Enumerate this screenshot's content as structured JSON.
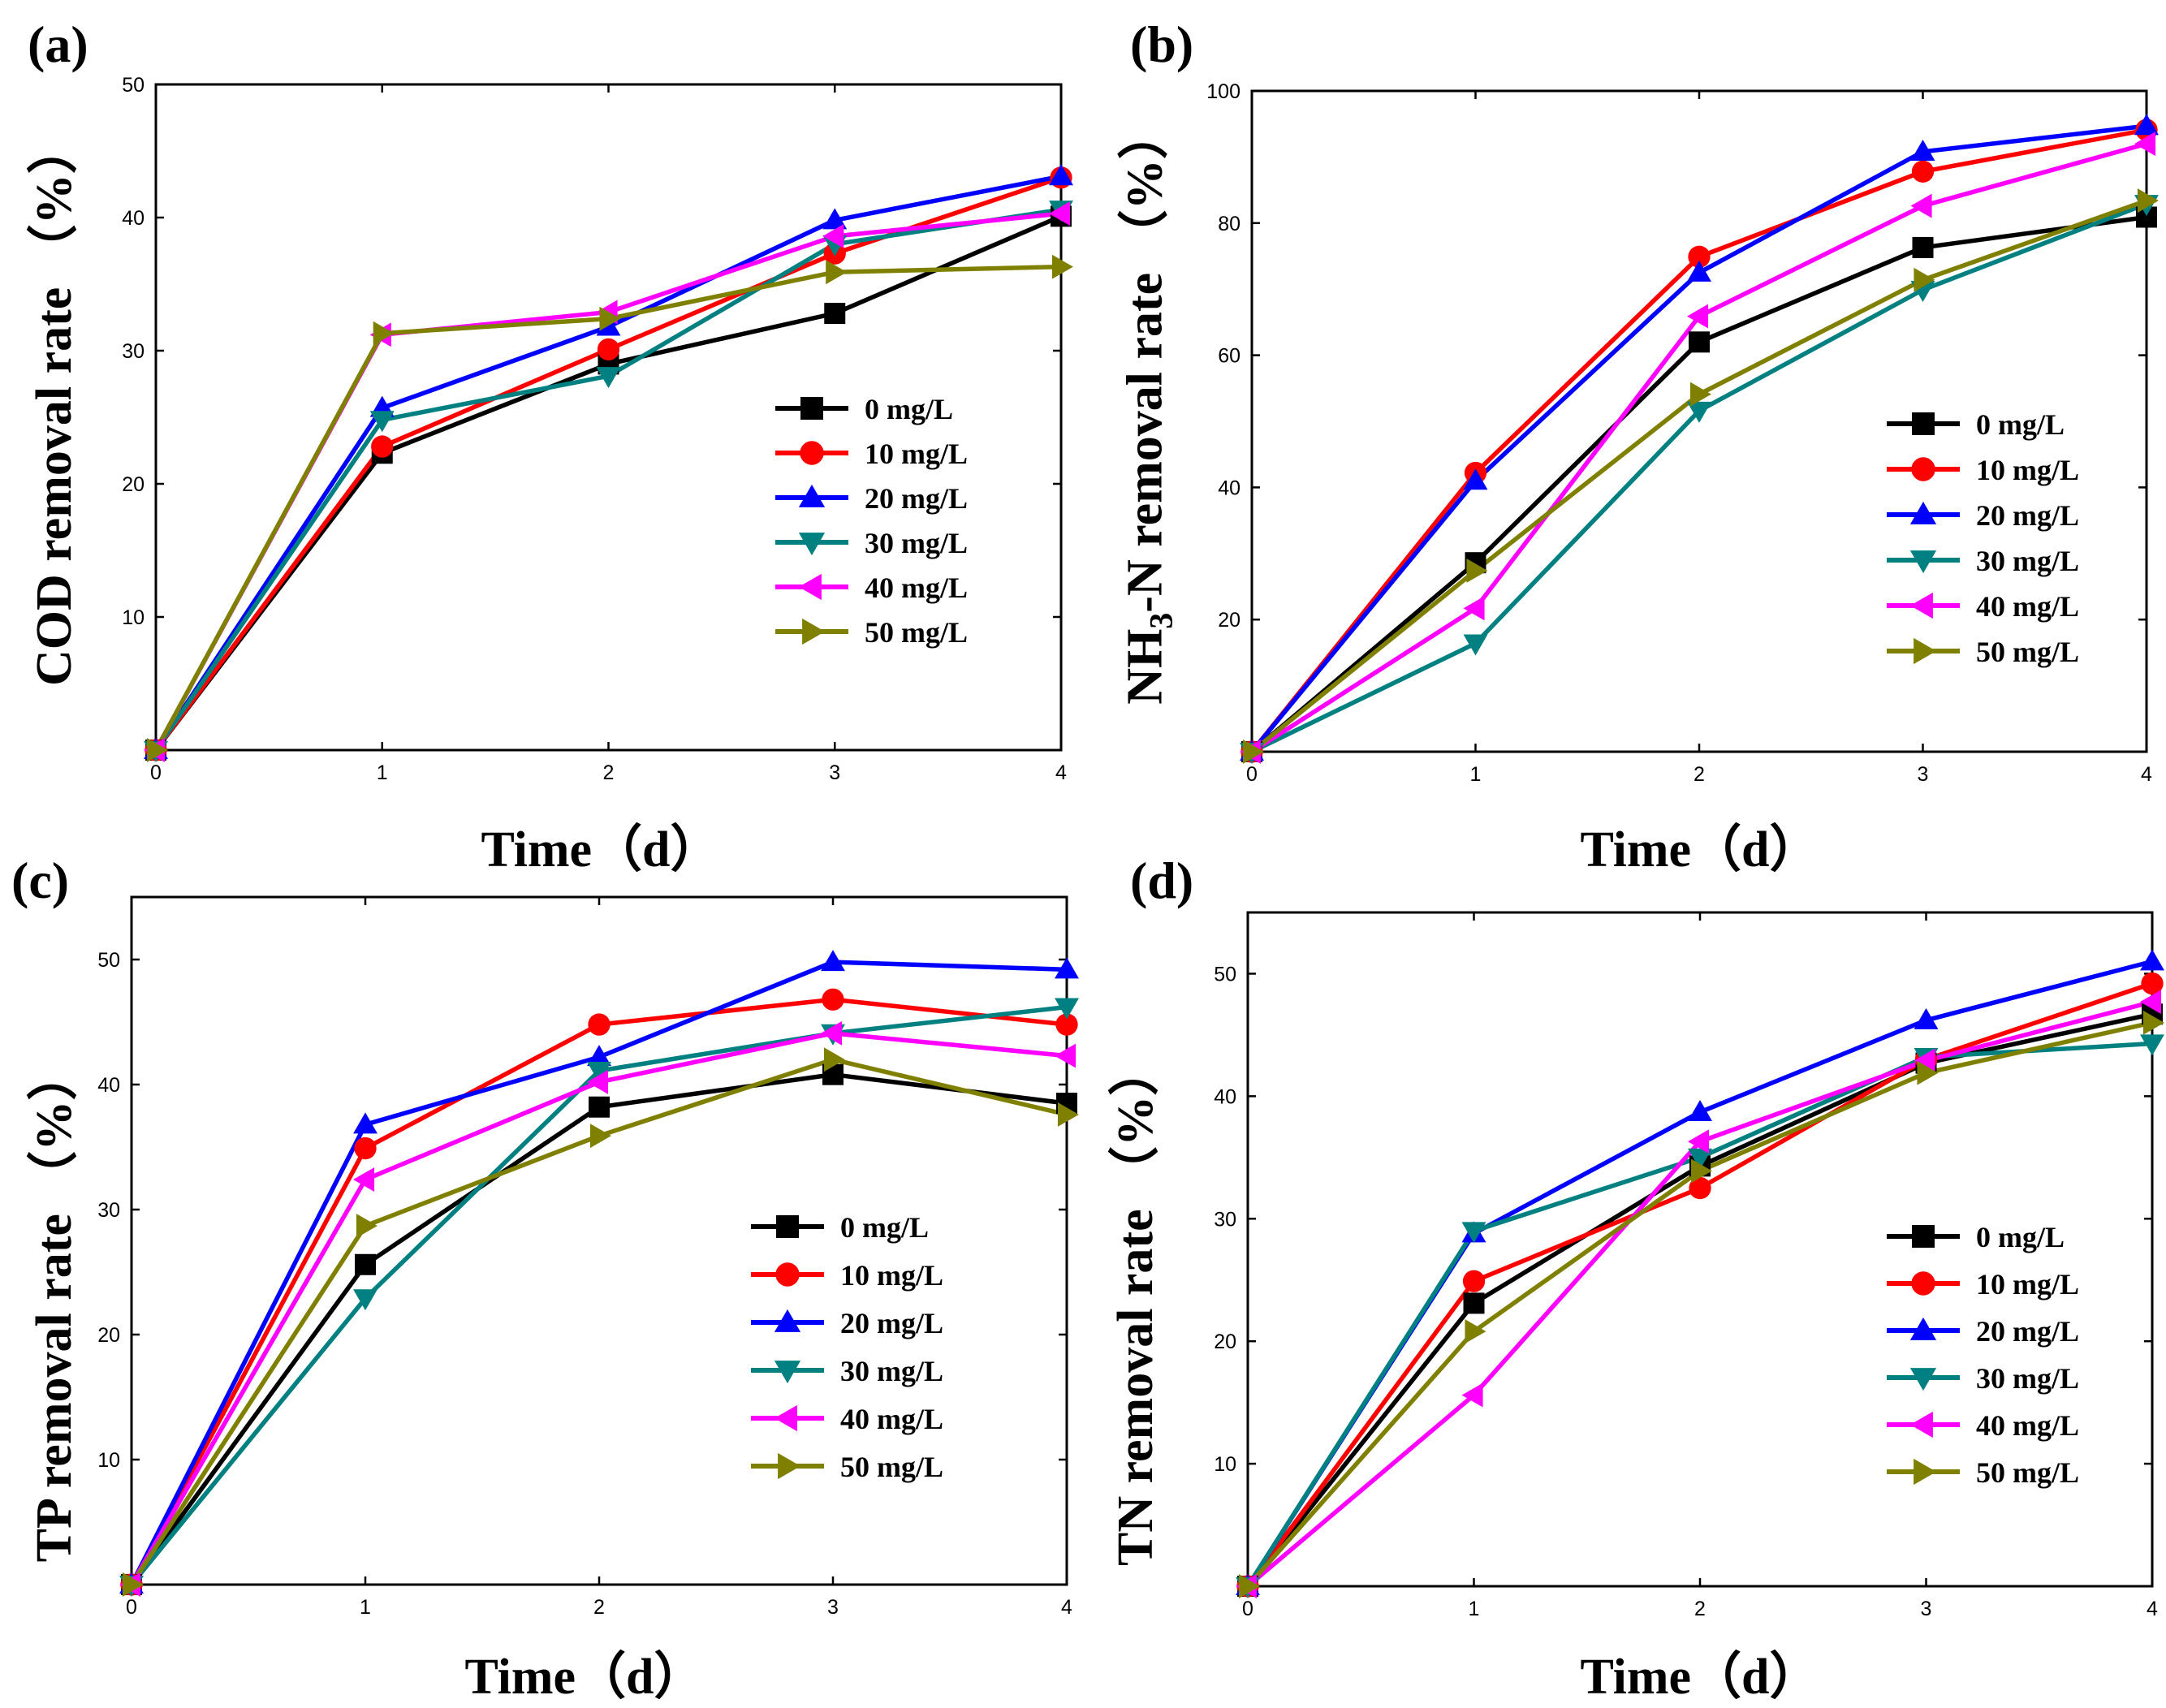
{
  "figure": {
    "legend_labels": [
      "0 mg/L",
      "10 mg/L",
      "20 mg/L",
      "30 mg/L",
      "40 mg/L",
      "50 mg/L"
    ],
    "colors": [
      "#000000",
      "#ff0000",
      "#0000ff",
      "#008080",
      "#ff00ff",
      "#808000"
    ],
    "markers": [
      "square",
      "circle",
      "triangle-up",
      "triangle-down",
      "triangle-left",
      "triangle-right"
    ]
  },
  "chart_data": [
    {
      "id": "a",
      "type": "line",
      "panel_label": "(a)",
      "xlabel": "Time（d）",
      "ylabel": "COD removal rate （%）",
      "x": [
        0,
        1,
        2,
        3,
        4
      ],
      "xlim": [
        0,
        4
      ],
      "ylim": [
        0,
        50
      ],
      "xticks": [
        0,
        1,
        2,
        3,
        4
      ],
      "yticks": [
        10,
        20,
        30,
        40,
        50
      ],
      "legend_position": "right",
      "series": [
        {
          "name": "0 mg/L",
          "values": [
            0,
            22.3,
            29.0,
            32.8,
            40.1
          ]
        },
        {
          "name": "10 mg/L",
          "values": [
            0,
            22.8,
            30.1,
            37.3,
            43.0
          ]
        },
        {
          "name": "20 mg/L",
          "values": [
            0,
            25.7,
            31.8,
            39.8,
            43.1
          ]
        },
        {
          "name": "30 mg/L",
          "values": [
            0,
            24.8,
            28.1,
            38.0,
            40.6
          ]
        },
        {
          "name": "40 mg/L",
          "values": [
            0,
            31.2,
            32.9,
            38.6,
            40.3
          ]
        },
        {
          "name": "50 mg/L",
          "values": [
            0,
            31.3,
            32.4,
            35.9,
            36.3
          ]
        }
      ]
    },
    {
      "id": "b",
      "type": "line",
      "panel_label": "(b)",
      "xlabel": "Time（d）",
      "ylabel_prefix": "NH",
      "ylabel_sub": "3",
      "ylabel_suffix": "-N removal rate （%）",
      "x": [
        0,
        1,
        2,
        3,
        4
      ],
      "xlim": [
        0,
        4
      ],
      "ylim": [
        0,
        100
      ],
      "xticks": [
        0,
        1,
        2,
        3,
        4
      ],
      "yticks": [
        20,
        40,
        60,
        80,
        100
      ],
      "legend_position": "right",
      "series": [
        {
          "name": "0 mg/L",
          "values": [
            0,
            28.6,
            62.0,
            76.3,
            80.9
          ]
        },
        {
          "name": "10 mg/L",
          "values": [
            0,
            42.2,
            74.9,
            87.8,
            94.1
          ]
        },
        {
          "name": "20 mg/L",
          "values": [
            0,
            41.0,
            72.5,
            90.8,
            94.7
          ]
        },
        {
          "name": "30 mg/L",
          "values": [
            0,
            16.4,
            51.6,
            69.9,
            82.9
          ]
        },
        {
          "name": "40 mg/L",
          "values": [
            0,
            21.7,
            65.9,
            82.6,
            92.0
          ]
        },
        {
          "name": "50 mg/L",
          "values": [
            0,
            27.4,
            54.1,
            71.4,
            83.4
          ]
        }
      ]
    },
    {
      "id": "c",
      "type": "line",
      "panel_label": "(c)",
      "xlabel": "Time（d）",
      "ylabel": "TP removal rate （%）",
      "x": [
        0,
        1,
        2,
        3,
        4
      ],
      "xlim": [
        0,
        4
      ],
      "ylim": [
        0,
        55
      ],
      "xticks": [
        0,
        1,
        2,
        3,
        4
      ],
      "yticks": [
        10,
        20,
        30,
        40,
        50
      ],
      "legend_position": "right",
      "series": [
        {
          "name": "0 mg/L",
          "values": [
            0,
            25.6,
            38.2,
            40.8,
            38.5
          ]
        },
        {
          "name": "10 mg/L",
          "values": [
            0,
            34.9,
            44.8,
            46.8,
            44.8
          ]
        },
        {
          "name": "20 mg/L",
          "values": [
            0,
            36.8,
            42.2,
            49.8,
            49.2
          ]
        },
        {
          "name": "30 mg/L",
          "values": [
            0,
            22.9,
            41.1,
            44.1,
            46.2
          ]
        },
        {
          "name": "40 mg/L",
          "values": [
            0,
            32.4,
            40.2,
            44.1,
            42.3
          ]
        },
        {
          "name": "50 mg/L",
          "values": [
            0,
            28.7,
            35.9,
            42.0,
            37.6
          ]
        }
      ]
    },
    {
      "id": "d",
      "type": "line",
      "panel_label": "(d)",
      "xlabel": "Time（d）",
      "ylabel": "TN removal rate （%）",
      "x": [
        0,
        1,
        2,
        3,
        4
      ],
      "xlim": [
        0,
        4
      ],
      "ylim": [
        0,
        55
      ],
      "xticks": [
        0,
        1,
        2,
        3,
        4
      ],
      "yticks": [
        10,
        20,
        30,
        40,
        50
      ],
      "legend_position": "right",
      "series": [
        {
          "name": "0 mg/L",
          "values": [
            0,
            23.1,
            34.3,
            42.7,
            46.7
          ]
        },
        {
          "name": "10 mg/L",
          "values": [
            0,
            24.9,
            32.5,
            43.0,
            49.2
          ]
        },
        {
          "name": "20 mg/L",
          "values": [
            0,
            28.8,
            38.7,
            46.2,
            51.0
          ]
        },
        {
          "name": "30 mg/L",
          "values": [
            0,
            29.0,
            35.0,
            43.2,
            44.3
          ]
        },
        {
          "name": "40 mg/L",
          "values": [
            0,
            15.6,
            36.3,
            42.9,
            47.7
          ]
        },
        {
          "name": "50 mg/L",
          "values": [
            0,
            20.8,
            33.9,
            41.9,
            46.0
          ]
        }
      ]
    }
  ]
}
